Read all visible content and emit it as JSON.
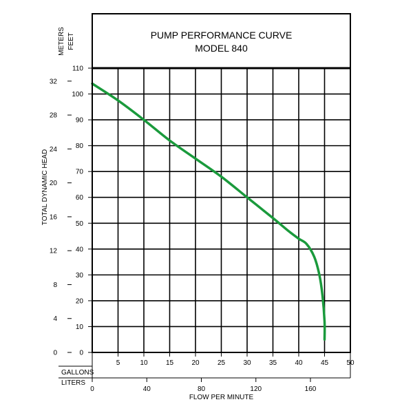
{
  "chart_data": {
    "type": "line",
    "title": [
      "PUMP PERFORMANCE CURVE",
      "MODEL 840"
    ],
    "xlabel": "FLOW PER MINUTE",
    "ylabel": "TOTAL DYNAMIC HEAD",
    "x_axes": {
      "gallons": {
        "label": "GALLONS",
        "ticks": [
          5,
          10,
          15,
          20,
          25,
          30,
          35,
          40,
          45,
          50
        ],
        "range": [
          0,
          50
        ]
      },
      "liters": {
        "label": "LITERS",
        "ticks": [
          0,
          40,
          80,
          120,
          160
        ],
        "range": [
          0,
          189.27
        ]
      }
    },
    "y_axes": {
      "feet": {
        "label": "FEET",
        "ticks": [
          0,
          10,
          20,
          30,
          40,
          50,
          60,
          70,
          80,
          90,
          100,
          110
        ],
        "range": [
          0,
          110
        ]
      },
      "meters": {
        "label": "METERS",
        "ticks": [
          0,
          4,
          8,
          12,
          16,
          20,
          24,
          28,
          32
        ],
        "range": [
          0,
          33.53
        ]
      }
    },
    "grid": true,
    "series": [
      {
        "color": "#1a9a3c",
        "points": [
          [
            0,
            104
          ],
          [
            5,
            97.5
          ],
          [
            10,
            90
          ],
          [
            15,
            82
          ],
          [
            20,
            75
          ],
          [
            25,
            68
          ],
          [
            30,
            60
          ],
          [
            35,
            52
          ],
          [
            38,
            47
          ],
          [
            40,
            44
          ],
          [
            41.5,
            42
          ],
          [
            43,
            37
          ],
          [
            44,
            30
          ],
          [
            44.6,
            22
          ],
          [
            45,
            12
          ],
          [
            45,
            5
          ]
        ]
      }
    ]
  }
}
